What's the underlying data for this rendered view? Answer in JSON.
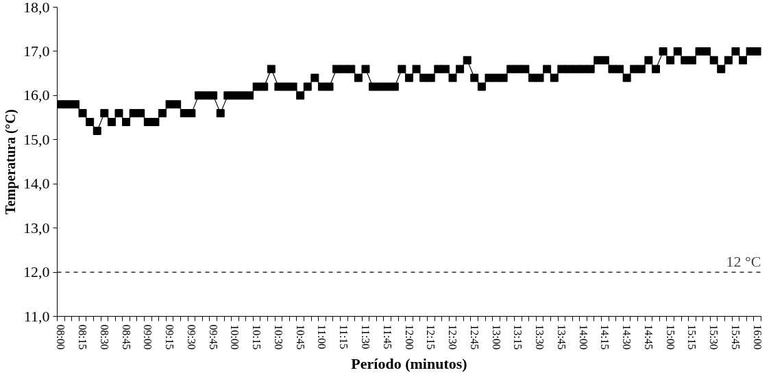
{
  "chart_data": {
    "type": "line",
    "xlabel": "Período (minutos)",
    "ylabel": "Temperatura (°C)",
    "categories": [
      "08:00",
      null,
      null,
      "08:15",
      null,
      null,
      "08:30",
      null,
      null,
      "08:45",
      null,
      null,
      "09:00",
      null,
      null,
      "09:15",
      null,
      null,
      "09:30",
      null,
      null,
      "09:45",
      null,
      null,
      "10:00",
      null,
      null,
      "10:15",
      null,
      null,
      "10:30",
      null,
      null,
      "10:45",
      null,
      null,
      "11:00",
      null,
      null,
      "11:15",
      null,
      null,
      "11:30",
      null,
      null,
      "11:45",
      null,
      null,
      "12:00",
      null,
      null,
      "12:15",
      null,
      null,
      "12:30",
      null,
      null,
      "12:45",
      null,
      null,
      "13:00",
      null,
      null,
      "13:15",
      null,
      null,
      "13:30",
      null,
      null,
      "13:45",
      null,
      null,
      "14:00",
      null,
      null,
      "14:15",
      null,
      null,
      "14:30",
      null,
      null,
      "14:45",
      null,
      null,
      "15:00",
      null,
      null,
      "15:15",
      null,
      null,
      "15:30",
      null,
      null,
      "15:45",
      null,
      null,
      "16:00"
    ],
    "series": [
      {
        "color": "#000000",
        "values": [
          15.8,
          15.8,
          15.8,
          15.6,
          15.4,
          15.2,
          15.6,
          15.4,
          15.6,
          15.4,
          15.6,
          15.6,
          15.4,
          15.4,
          15.6,
          15.8,
          15.8,
          15.6,
          15.6,
          16.0,
          16.0,
          16.0,
          15.6,
          16.0,
          16.0,
          16.0,
          16.0,
          16.2,
          16.2,
          16.6,
          16.2,
          16.2,
          16.2,
          16.0,
          16.2,
          16.4,
          16.2,
          16.2,
          16.6,
          16.6,
          16.6,
          16.4,
          16.6,
          16.2,
          16.2,
          16.2,
          16.2,
          16.6,
          16.4,
          16.6,
          16.4,
          16.4,
          16.6,
          16.6,
          16.4,
          16.6,
          16.8,
          16.4,
          16.2,
          16.4,
          16.4,
          16.4,
          16.6,
          16.6,
          16.6,
          16.4,
          16.4,
          16.6,
          16.4,
          16.6,
          16.6,
          16.6,
          16.6,
          16.6,
          16.8,
          16.8,
          16.6,
          16.6,
          16.4,
          16.6,
          16.6,
          16.8,
          16.6,
          17.0,
          16.8,
          17.0,
          16.8,
          16.8,
          17.0,
          17.0,
          16.8,
          16.6,
          16.8,
          17.0,
          16.8,
          17.0,
          17.0
        ]
      }
    ],
    "ylim": [
      11,
      18
    ],
    "yticks": [
      {
        "value": 11,
        "label": "11,0"
      },
      {
        "value": 12,
        "label": "12,0"
      },
      {
        "value": 13,
        "label": "13,0"
      },
      {
        "value": 14,
        "label": "14,0"
      },
      {
        "value": 15,
        "label": "15,0"
      },
      {
        "value": 16,
        "label": "16,0"
      },
      {
        "value": 17,
        "label": "17,0"
      },
      {
        "value": 18,
        "label": "18,0"
      }
    ],
    "ref_lines": [
      {
        "axis": "y",
        "value": 12,
        "label": "12 °C",
        "color": "#000000",
        "line_style": "dashed"
      }
    ],
    "marker": "square",
    "line_style": "solid",
    "grid": false
  }
}
